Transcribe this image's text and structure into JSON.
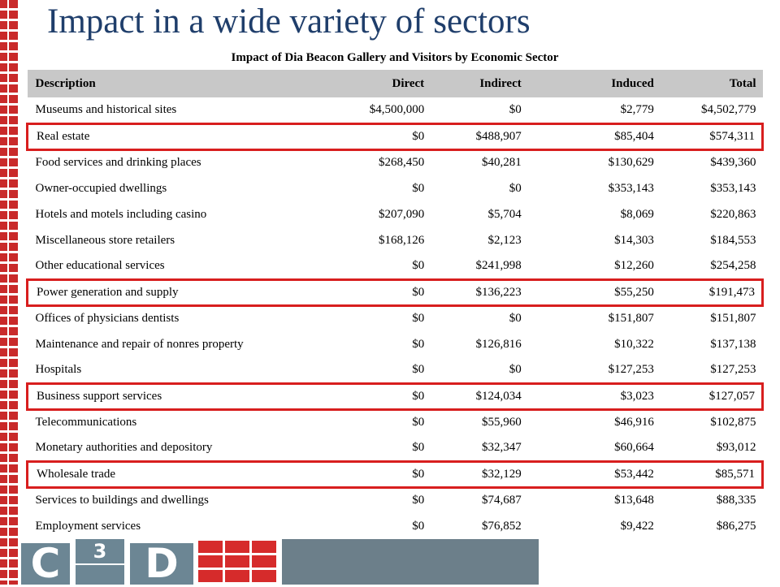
{
  "slide": {
    "title": "Impact in a wide variety of sectors"
  },
  "table": {
    "caption": "Impact of Dia Beacon Gallery and Visitors by Economic Sector",
    "columns": [
      "Description",
      "Direct",
      "Indirect",
      "Induced",
      "Total"
    ],
    "rows": [
      [
        "Museums and historical sites",
        "$4,500,000",
        "$0",
        "$2,779",
        "$4,502,779"
      ],
      [
        "Real estate",
        "$0",
        "$488,907",
        "$85,404",
        "$574,311"
      ],
      [
        "Food services and drinking places",
        "$268,450",
        "$40,281",
        "$130,629",
        "$439,360"
      ],
      [
        "Owner-occupied dwellings",
        "$0",
        "$0",
        "$353,143",
        "$353,143"
      ],
      [
        "Hotels and motels including casino",
        "$207,090",
        "$5,704",
        "$8,069",
        "$220,863"
      ],
      [
        "Miscellaneous store retailers",
        "$168,126",
        "$2,123",
        "$14,303",
        "$184,553"
      ],
      [
        "Other educational services",
        "$0",
        "$241,998",
        "$12,260",
        "$254,258"
      ],
      [
        "Power generation and supply",
        "$0",
        "$136,223",
        "$55,250",
        "$191,473"
      ],
      [
        "Offices of physicians dentists",
        "$0",
        "$0",
        "$151,807",
        "$151,807"
      ],
      [
        "Maintenance and repair of nonres property",
        "$0",
        "$126,816",
        "$10,322",
        "$137,138"
      ],
      [
        "Hospitals",
        "$0",
        "$0",
        "$127,253",
        "$127,253"
      ],
      [
        "Business support services",
        "$0",
        "$124,034",
        "$3,023",
        "$127,057"
      ],
      [
        "Telecommunications",
        "$0",
        "$55,960",
        "$46,916",
        "$102,875"
      ],
      [
        "Monetary authorities and depository",
        "$0",
        "$32,347",
        "$60,664",
        "$93,012"
      ],
      [
        "Wholesale trade",
        "$0",
        "$32,129",
        "$53,442",
        "$85,571"
      ],
      [
        "Services to buildings and dwellings",
        "$0",
        "$74,687",
        "$13,648",
        "$88,335"
      ],
      [
        "Employment services",
        "$0",
        "$76,852",
        "$9,422",
        "$86,275"
      ]
    ],
    "highlighted_rows": [
      "Real estate",
      "Power generation and supply",
      "Business support services",
      "Wholesale trade"
    ],
    "highlight_color": "#d81e1e",
    "header_bg": "#c8c8c8"
  },
  "logo": {
    "letter_c": "C",
    "superscript": "3",
    "letter_d": "D"
  },
  "colors": {
    "title": "#1f3e6b",
    "brick": "#c92a2a",
    "logo_slate": "#6c8694",
    "footer_band": "#6c7f8a"
  }
}
